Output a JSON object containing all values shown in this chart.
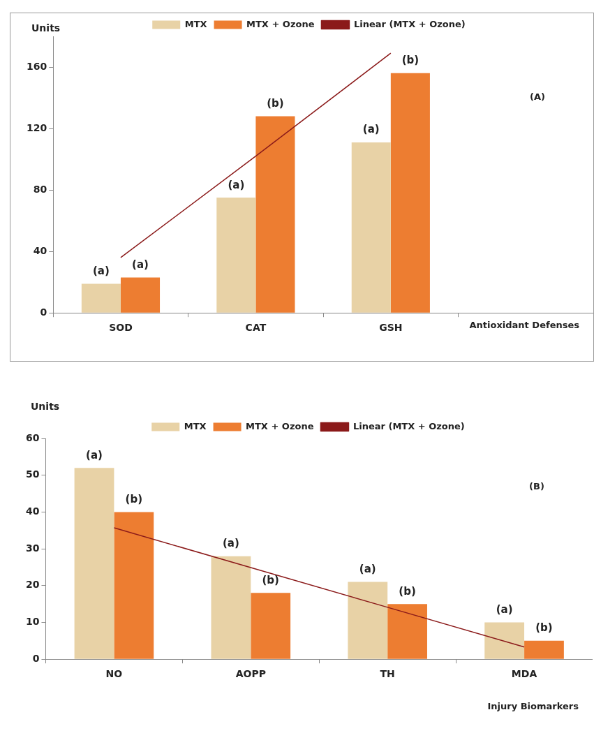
{
  "chart_data": [
    {
      "type": "bar",
      "ylabel": "Units",
      "xlabel": "Antioxidant Defenses",
      "categories": [
        "SOD",
        "CAT",
        "GSH",
        null
      ],
      "ylim": [
        0,
        180
      ],
      "yticks": [
        0,
        40,
        80,
        120,
        160
      ],
      "grid": false,
      "legend": "top",
      "annotations": [
        "(A)"
      ],
      "series": [
        {
          "name": "MTX",
          "color": "#e8d2a6",
          "values": [
            19,
            75,
            111,
            null
          ],
          "value_labels": [
            "(a)",
            "(a)",
            "(a)",
            null
          ]
        },
        {
          "name": "MTX + Ozone",
          "color": "#ed7d31",
          "values": [
            23,
            128,
            156,
            null
          ],
          "value_labels": [
            "(a)",
            "(b)",
            "(b)",
            null
          ]
        },
        {
          "name": "Linear (MTX + Ozone)",
          "type": "line",
          "color": "#8b1a1a",
          "values": [
            36,
            102,
            169,
            null
          ]
        }
      ]
    },
    {
      "type": "bar",
      "ylabel": "Units",
      "xlabel": "Injury Biomarkers",
      "categories": [
        "NO",
        "AOPP",
        "TH",
        "MDA"
      ],
      "ylim": [
        0,
        60
      ],
      "yticks": [
        0,
        10,
        20,
        30,
        40,
        50,
        60
      ],
      "grid": false,
      "legend": "top",
      "annotations": [
        "(B)"
      ],
      "series": [
        {
          "name": "MTX",
          "color": "#e8d2a6",
          "values": [
            52,
            28,
            21,
            10
          ],
          "value_labels": [
            "(a)",
            "(a)",
            "(a)",
            "(a)"
          ]
        },
        {
          "name": "MTX + Ozone",
          "color": "#ed7d31",
          "values": [
            40,
            18,
            15,
            5
          ],
          "value_labels": [
            "(b)",
            "(b)",
            "(b)",
            "(b)"
          ]
        },
        {
          "name": "Linear (MTX + Ozone)",
          "type": "line",
          "color": "#8b1a1a",
          "values": [
            35.7,
            24.9,
            14.1,
            3.3
          ]
        }
      ]
    }
  ]
}
